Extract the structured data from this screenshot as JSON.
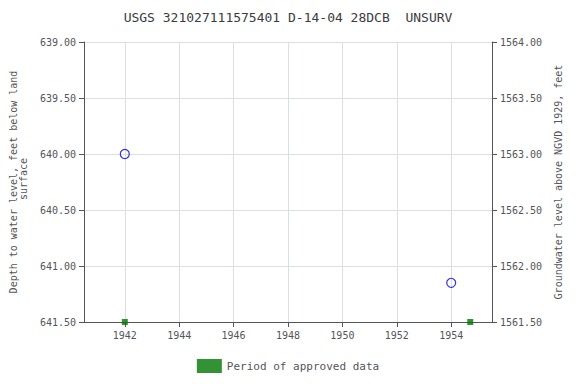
{
  "chart_data": {
    "type": "scatter",
    "title": "USGS 321027111575401 D-14-04 28DCB  UNSURV",
    "ylabel": "Depth to water level, feet below land\n surface",
    "y2label": "Groundwater level above NGVD 1929, feet",
    "xlim": [
      1940.5,
      1955.5
    ],
    "xticks": [
      1942,
      1944,
      1946,
      1948,
      1950,
      1952,
      1954
    ],
    "ylim": [
      641.5,
      639.0
    ],
    "yticks": [
      {
        "value": 639.0,
        "label": "639.00"
      },
      {
        "value": 639.5,
        "label": "639.50"
      },
      {
        "value": 640.0,
        "label": "640.00"
      },
      {
        "value": 640.5,
        "label": "640.50"
      },
      {
        "value": 641.0,
        "label": "641.00"
      },
      {
        "value": 641.5,
        "label": "641.50"
      }
    ],
    "y2lim": [
      1561.5,
      1564.0
    ],
    "y2ticks": [
      {
        "value": 1561.5,
        "label": "1561.50"
      },
      {
        "value": 1562.0,
        "label": "1562.00"
      },
      {
        "value": 1562.5,
        "label": "1562.50"
      },
      {
        "value": 1563.0,
        "label": "1563.00"
      },
      {
        "value": 1563.5,
        "label": "1563.50"
      },
      {
        "value": 1564.0,
        "label": "1564.00"
      }
    ],
    "series": [
      {
        "x": [
          1942.0,
          1954.0
        ],
        "values": [
          640.0,
          641.15
        ],
        "color": "#0000cc",
        "marker": "circle-open"
      },
      {
        "name": "Period of approved data",
        "x": [
          1942.0,
          1954.7
        ],
        "values": [
          641.5,
          641.5
        ],
        "color": "#007700",
        "marker": "square"
      }
    ],
    "grid": true,
    "legend": "bottom"
  }
}
